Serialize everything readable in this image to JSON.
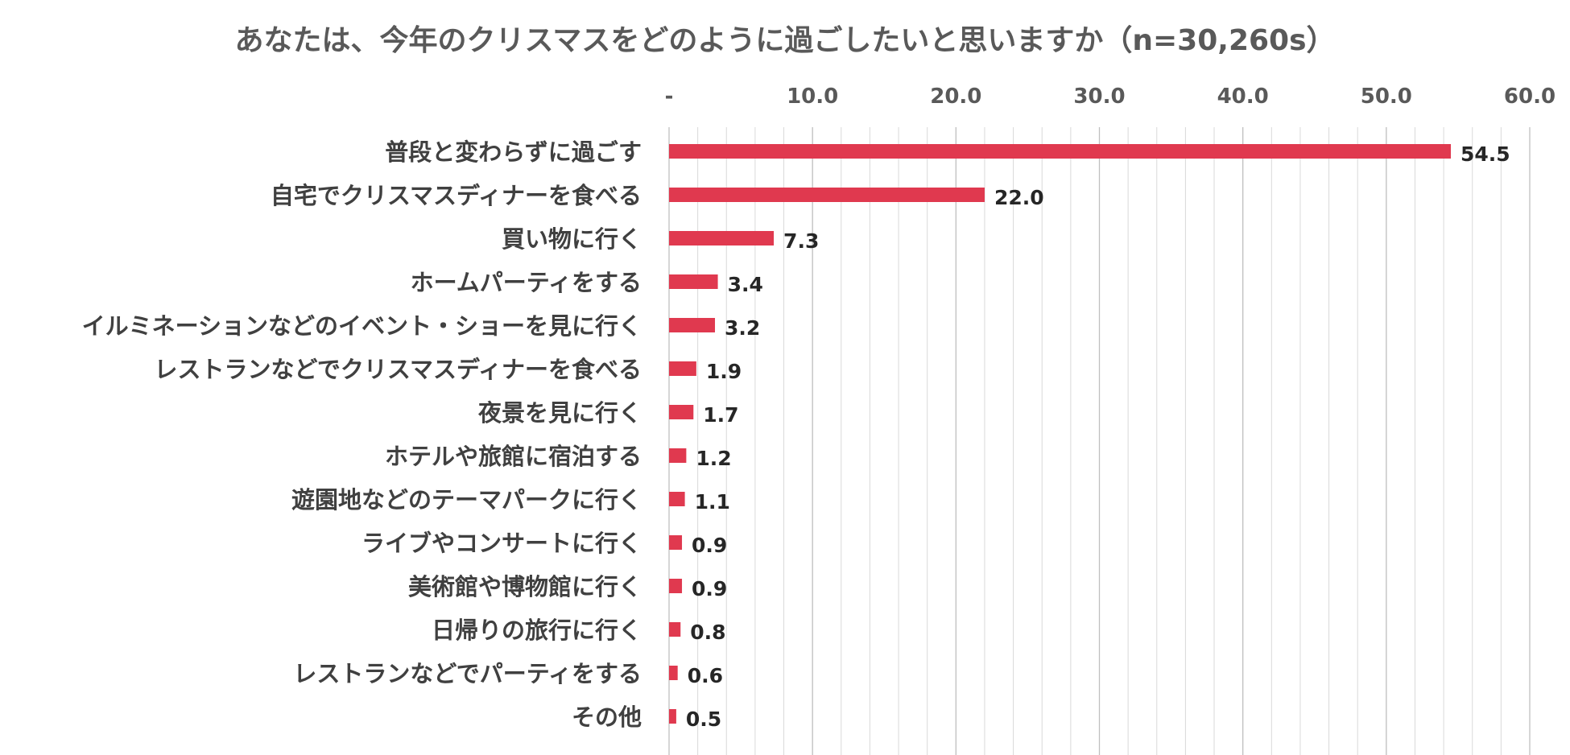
{
  "chart_data": {
    "type": "bar",
    "orientation": "horizontal",
    "title": "あなたは、今年のクリスマスをどのように過ごしたいと思いますか（n=30,260s）",
    "categories": [
      "普段と変わらずに過ごす",
      "自宅でクリスマスディナーを食べる",
      "買い物に行く",
      "ホームパーティをする",
      "イルミネーションなどのイベント・ショーを見に行く",
      "レストランなどでクリスマスディナーを食べる",
      "夜景を見に行く",
      "ホテルや旅館に宿泊する",
      "遊園地などのテーマパークに行く",
      "ライブやコンサートに行く",
      "美術館や博物館に行く",
      "日帰りの旅行に行く",
      "レストランなどでパーティをする",
      "その他"
    ],
    "values": [
      54.5,
      22.0,
      7.3,
      3.4,
      3.2,
      1.9,
      1.7,
      1.2,
      1.1,
      0.9,
      0.9,
      0.8,
      0.6,
      0.5
    ],
    "value_labels": [
      "54.5",
      "22.0",
      "7.3",
      "3.4",
      "3.2",
      "1.9",
      "1.7",
      "1.2",
      "1.1",
      "0.9",
      "0.9",
      "0.8",
      "0.6",
      "0.5"
    ],
    "xlim": [
      0,
      60
    ],
    "ticks": [
      0,
      10,
      20,
      30,
      40,
      50,
      60
    ],
    "tick_labels": [
      "-",
      "10.0",
      "20.0",
      "30.0",
      "40.0",
      "50.0",
      "60.0"
    ],
    "axis_position": "top",
    "gridlines": true,
    "bar_color": "#E0394F",
    "grid_color": "#D9D9D9"
  }
}
